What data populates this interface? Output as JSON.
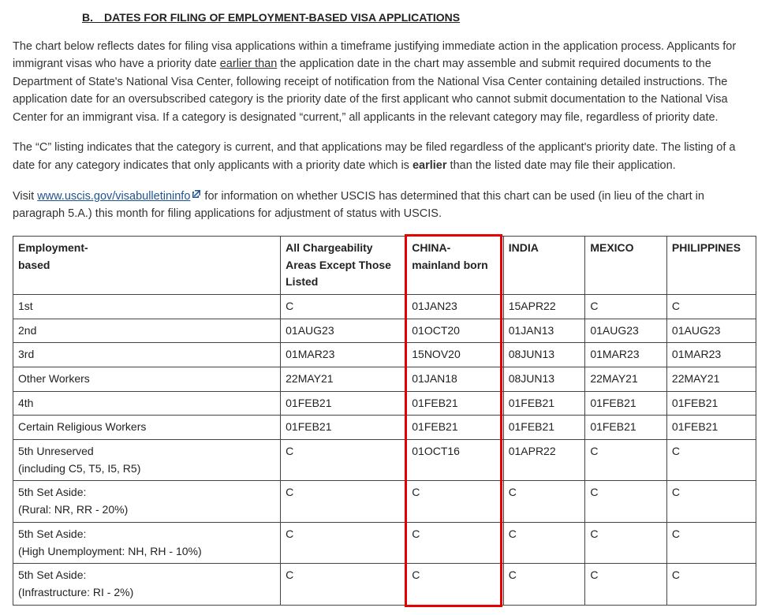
{
  "heading": "B. DATES FOR FILING OF EMPLOYMENT-BASED VISA APPLICATIONS",
  "para1_pre": "The chart below reflects dates for filing visa applications within a timeframe justifying immediate action in the application process. Applicants for immigrant visas who have a priority date ",
  "para1_ul": "earlier than",
  "para1_post": " the application date in the chart may assemble and submit required documents to the Department of State's National Visa Center, following receipt of notification from the National Visa Center containing detailed instructions. The application date for an oversubscribed category is the priority date of the first applicant who cannot submit documentation to the National Visa Center for an immigrant visa. If a category is designated “current,” all applicants in the relevant category may file, regardless of priority date.",
  "para2_pre": "The “C” listing indicates that the category is current, and that applications may be filed regardless of the applicant's priority date. The listing of a date for any category indicates that only applicants with a priority date which is ",
  "para2_bold": "earlier",
  "para2_post": " than the listed date may file their application.",
  "para3_pre": "Visit ",
  "para3_link": "www.uscis.gov/visabulletininfo",
  "para3_post": " for information on whether USCIS has determined that this chart can be used (in lieu of the chart in paragraph 5.A.) this month for filing applications for adjustment of status with USCIS.",
  "table": {
    "columns": [
      "Employment-\nbased",
      "All Chargeability Areas Except Those Listed",
      "CHINA-mainland born",
      "INDIA",
      "MEXICO",
      "PHILIPPINES"
    ],
    "rows": [
      [
        "1st",
        "C",
        "01JAN23",
        "15APR22",
        "C",
        "C"
      ],
      [
        "2nd",
        "01AUG23",
        "01OCT20",
        "01JAN13",
        "01AUG23",
        "01AUG23"
      ],
      [
        "3rd",
        "01MAR23",
        "15NOV20",
        "08JUN13",
        "01MAR23",
        "01MAR23"
      ],
      [
        "Other Workers",
        "22MAY21",
        "01JAN18",
        "08JUN13",
        "22MAY21",
        "22MAY21"
      ],
      [
        "4th",
        "01FEB21",
        "01FEB21",
        "01FEB21",
        "01FEB21",
        "01FEB21"
      ],
      [
        "Certain Religious Workers",
        "01FEB21",
        "01FEB21",
        "01FEB21",
        "01FEB21",
        "01FEB21"
      ],
      [
        "5th Unreserved\n(including C5, T5, I5, R5)",
        "C",
        "01OCT16",
        "01APR22",
        "C",
        "C"
      ],
      [
        "5th Set Aside:\n(Rural: NR, RR - 20%)",
        "C",
        "C",
        "C",
        "C",
        "C"
      ],
      [
        "5th Set Aside:\n(High Unemployment: NH, RH - 10%)",
        "C",
        "C",
        "C",
        "C",
        "C"
      ],
      [
        "5th Set Aside:\n(Infrastructure: RI - 2%)",
        "C",
        "C",
        "C",
        "C",
        "C"
      ]
    ],
    "highlight_col_index": 2,
    "highlight_color": "#e60000",
    "border_color": "#444444",
    "font_size_pt": 10.5
  },
  "link_color": "#205493"
}
